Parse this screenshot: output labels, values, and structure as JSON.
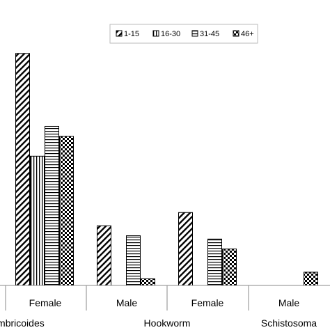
{
  "chart_data": {
    "type": "bar",
    "title": "",
    "xlabel": "",
    "ylabel": "",
    "ylim": [
      0,
      36
    ],
    "grid": false,
    "legend_position": "top-right",
    "legend": [
      {
        "label": "1-15",
        "pattern": "diagonal"
      },
      {
        "label": "16-30",
        "pattern": "vertical"
      },
      {
        "label": "31-45",
        "pattern": "horizontal"
      },
      {
        "label": "46+",
        "pattern": "checker"
      }
    ],
    "series_names": [
      "1-15",
      "16-30",
      "31-45",
      "46+"
    ],
    "groups": [
      {
        "category": "Female",
        "parasite": "A. lumbricoides",
        "values": [
          35,
          19.5,
          24,
          22.5
        ]
      },
      {
        "category": "Male",
        "parasite": "Hookworm",
        "values": [
          9,
          null,
          7.5,
          1
        ]
      },
      {
        "category": "Female",
        "parasite": "Hookworm",
        "values": [
          11,
          null,
          7,
          5.5
        ]
      },
      {
        "category": "Male",
        "parasite": "Schistosoma",
        "values": [
          null,
          null,
          null,
          2
        ]
      }
    ],
    "category_labels": [
      "Female",
      "Male",
      "Female",
      "Male"
    ],
    "parasite_labels": [
      "umbricoides",
      "Hookworm",
      "Schistosoma"
    ]
  },
  "colors": {
    "bar_fill": "#ffffff",
    "pattern": "#000000",
    "axis": "#888888"
  }
}
